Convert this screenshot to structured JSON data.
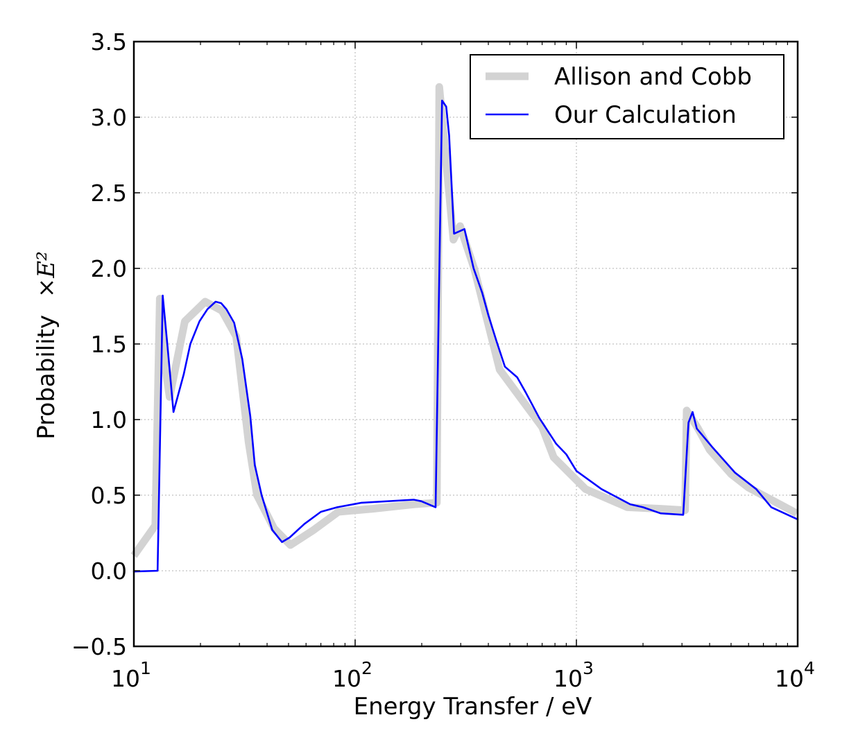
{
  "chart_data": {
    "type": "line",
    "xlabel": "Energy Transfer / eV",
    "ylabel": "Probability",
    "ylabel_math": "×E²",
    "x_scale": "log",
    "xlim": [
      10,
      10000
    ],
    "ylim": [
      -0.5,
      3.5
    ],
    "grid": true,
    "legend_position": "top-right",
    "x_ticks": [
      {
        "value": 10,
        "base": "10",
        "exp": "1"
      },
      {
        "value": 100,
        "base": "10",
        "exp": "2"
      },
      {
        "value": 1000,
        "base": "10",
        "exp": "3"
      },
      {
        "value": 10000,
        "base": "10",
        "exp": "4"
      }
    ],
    "y_ticks": [
      {
        "value": -0.5,
        "label": "−0.5"
      },
      {
        "value": 0.0,
        "label": "0.0"
      },
      {
        "value": 0.5,
        "label": "0.5"
      },
      {
        "value": 1.0,
        "label": "1.0"
      },
      {
        "value": 1.5,
        "label": "1.5"
      },
      {
        "value": 2.0,
        "label": "2.0"
      },
      {
        "value": 2.5,
        "label": "2.5"
      },
      {
        "value": 3.0,
        "label": "3.0"
      },
      {
        "value": 3.5,
        "label": "3.5"
      }
    ],
    "series": [
      {
        "name": "Allison and Cobb",
        "color": "#d3d3d3",
        "style": "thick",
        "points": [
          [
            10.0,
            0.1
          ],
          [
            12.5,
            0.3
          ],
          [
            13.1,
            1.8
          ],
          [
            13.7,
            1.4
          ],
          [
            14.5,
            1.15
          ],
          [
            17.0,
            1.65
          ],
          [
            21.0,
            1.78
          ],
          [
            25.0,
            1.72
          ],
          [
            29.0,
            1.55
          ],
          [
            33.0,
            0.85
          ],
          [
            36.0,
            0.5
          ],
          [
            43.0,
            0.28
          ],
          [
            51.0,
            0.17
          ],
          [
            65.0,
            0.27
          ],
          [
            84.0,
            0.39
          ],
          [
            120.0,
            0.41
          ],
          [
            185.0,
            0.44
          ],
          [
            234.0,
            0.45
          ],
          [
            240.0,
            3.2
          ],
          [
            278.0,
            2.19
          ],
          [
            298.0,
            2.28
          ],
          [
            345.0,
            2.0
          ],
          [
            450.0,
            1.33
          ],
          [
            700.0,
            0.95
          ],
          [
            790.0,
            0.75
          ],
          [
            1100.0,
            0.54
          ],
          [
            1700.0,
            0.42
          ],
          [
            2400.0,
            0.41
          ],
          [
            3100.0,
            0.4
          ],
          [
            3150.0,
            1.06
          ],
          [
            3550.0,
            0.94
          ],
          [
            4000.0,
            0.8
          ],
          [
            5000.0,
            0.64
          ],
          [
            6000.0,
            0.55
          ],
          [
            9900.0,
            0.38
          ]
        ]
      },
      {
        "name": "Our Calculation",
        "color": "#0000ff",
        "style": "thin",
        "points": [
          [
            10.0,
            -0.005
          ],
          [
            12.8,
            0.0
          ],
          [
            13.5,
            1.82
          ],
          [
            14.2,
            1.48
          ],
          [
            15.1,
            1.05
          ],
          [
            16.8,
            1.3
          ],
          [
            18.0,
            1.5
          ],
          [
            19.8,
            1.65
          ],
          [
            21.5,
            1.73
          ],
          [
            23.4,
            1.78
          ],
          [
            24.8,
            1.77
          ],
          [
            26.2,
            1.73
          ],
          [
            28.4,
            1.64
          ],
          [
            30.9,
            1.4
          ],
          [
            33.6,
            1.02
          ],
          [
            35.2,
            0.7
          ],
          [
            37.8,
            0.5
          ],
          [
            42.2,
            0.27
          ],
          [
            46.7,
            0.19
          ],
          [
            50.6,
            0.22
          ],
          [
            59.0,
            0.31
          ],
          [
            70.0,
            0.39
          ],
          [
            83.0,
            0.42
          ],
          [
            107.0,
            0.45
          ],
          [
            184.0,
            0.47
          ],
          [
            199.0,
            0.46
          ],
          [
            231.0,
            0.42
          ],
          [
            247.0,
            3.11
          ],
          [
            258.0,
            3.07
          ],
          [
            266.0,
            2.88
          ],
          [
            280.0,
            2.23
          ],
          [
            312.0,
            2.26
          ],
          [
            343.0,
            2.0
          ],
          [
            375.0,
            1.84
          ],
          [
            400.0,
            1.69
          ],
          [
            435.0,
            1.52
          ],
          [
            475.0,
            1.35
          ],
          [
            540.0,
            1.28
          ],
          [
            590.0,
            1.18
          ],
          [
            680.0,
            1.01
          ],
          [
            810.0,
            0.84
          ],
          [
            900.0,
            0.77
          ],
          [
            1000.0,
            0.66
          ],
          [
            1300.0,
            0.54
          ],
          [
            1750.0,
            0.44
          ],
          [
            2000.0,
            0.42
          ],
          [
            2400.0,
            0.38
          ],
          [
            3040.0,
            0.37
          ],
          [
            3210.0,
            0.98
          ],
          [
            3350.0,
            1.05
          ],
          [
            3500.0,
            0.94
          ],
          [
            4100.0,
            0.82
          ],
          [
            5200.0,
            0.65
          ],
          [
            6500.0,
            0.54
          ],
          [
            7600.0,
            0.42
          ],
          [
            10000.0,
            0.34
          ]
        ]
      }
    ]
  }
}
